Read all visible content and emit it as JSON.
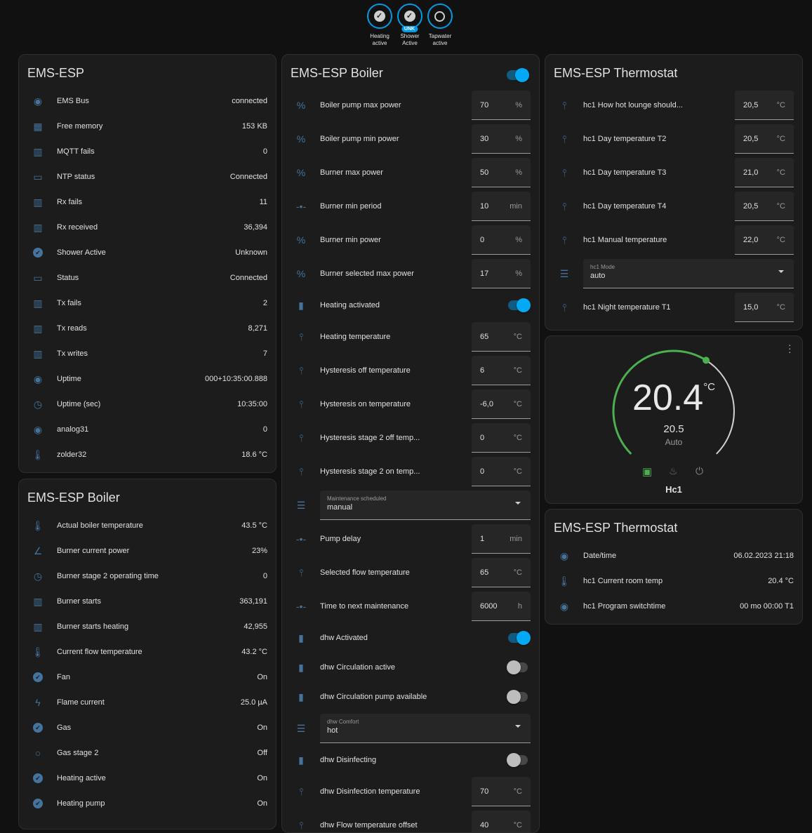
{
  "badges": [
    {
      "label": "Heating active",
      "state": "on"
    },
    {
      "label": "Shower Active",
      "state": "on",
      "tag": "UNK"
    },
    {
      "label": "Tapwater active",
      "state": "off"
    }
  ],
  "card_status": {
    "title": "EMS-ESP",
    "rows": [
      {
        "icon": "eye-icon",
        "label": "EMS Bus",
        "value": "connected"
      },
      {
        "icon": "chip-icon",
        "label": "Free memory",
        "value": "153 KB"
      },
      {
        "icon": "counter-icon",
        "label": "MQTT fails",
        "value": "0"
      },
      {
        "icon": "monitor-icon",
        "label": "NTP status",
        "value": "Connected"
      },
      {
        "icon": "counter-icon",
        "label": "Rx fails",
        "value": "11"
      },
      {
        "icon": "counter-icon",
        "label": "Rx received",
        "value": "36,394"
      },
      {
        "icon": "check-circle-icon",
        "label": "Shower Active",
        "value": "Unknown"
      },
      {
        "icon": "monitor-icon",
        "label": "Status",
        "value": "Connected"
      },
      {
        "icon": "counter-icon",
        "label": "Tx fails",
        "value": "2"
      },
      {
        "icon": "counter-icon",
        "label": "Tx reads",
        "value": "8,271"
      },
      {
        "icon": "counter-icon",
        "label": "Tx writes",
        "value": "7"
      },
      {
        "icon": "eye-icon",
        "label": "Uptime",
        "value": "000+10:35:00.888"
      },
      {
        "icon": "timer-icon",
        "label": "Uptime (sec)",
        "value": "10:35:00"
      },
      {
        "icon": "eye-icon",
        "label": "analog31",
        "value": "0"
      },
      {
        "icon": "thermometer-icon",
        "label": "zolder32",
        "value": "18.6 °C"
      }
    ]
  },
  "card_boiler_sensors": {
    "title": "EMS-ESP Boiler",
    "rows": [
      {
        "icon": "thermometer-icon",
        "label": "Actual boiler temperature",
        "value": "43.5 °C"
      },
      {
        "icon": "angle-icon",
        "label": "Burner current power",
        "value": "23%"
      },
      {
        "icon": "timer-icon",
        "label": "Burner stage 2 operating time",
        "value": "0"
      },
      {
        "icon": "counter-icon",
        "label": "Burner starts",
        "value": "363,191"
      },
      {
        "icon": "counter-icon",
        "label": "Burner starts heating",
        "value": "42,955"
      },
      {
        "icon": "thermometer-icon",
        "label": "Current flow temperature",
        "value": "43.2 °C"
      },
      {
        "icon": "check-circle-icon",
        "label": "Fan",
        "value": "On"
      },
      {
        "icon": "flash-icon",
        "label": "Flame current",
        "value": "25.0 µA"
      },
      {
        "icon": "check-circle-icon",
        "label": "Gas",
        "value": "On"
      },
      {
        "icon": "circle-outline-icon",
        "label": "Gas stage 2",
        "value": "Off"
      },
      {
        "icon": "check-circle-icon",
        "label": "Heating active",
        "value": "On"
      },
      {
        "icon": "check-circle-icon",
        "label": "Heating pump",
        "value": "On"
      }
    ]
  },
  "card_boiler_controls": {
    "title": "EMS-ESP Boiler",
    "master_toggle": true,
    "rows": [
      {
        "type": "number",
        "icon": "percent-icon",
        "label": "Boiler pump max power",
        "value": "70",
        "unit": "%"
      },
      {
        "type": "number",
        "icon": "percent-icon",
        "label": "Boiler pump min power",
        "value": "30",
        "unit": "%"
      },
      {
        "type": "number",
        "icon": "percent-icon",
        "label": "Burner max power",
        "value": "50",
        "unit": "%"
      },
      {
        "type": "number",
        "icon": "slider-icon",
        "label": "Burner min period",
        "value": "10",
        "unit": "min"
      },
      {
        "type": "number",
        "icon": "percent-icon",
        "label": "Burner min power",
        "value": "0",
        "unit": "%"
      },
      {
        "type": "number",
        "icon": "percent-icon",
        "label": "Burner selected max power",
        "value": "17",
        "unit": "%"
      },
      {
        "type": "toggle",
        "icon": "switch-icon",
        "label": "Heating activated",
        "on": true
      },
      {
        "type": "number",
        "icon": "water-thermometer-icon",
        "label": "Heating temperature",
        "value": "65",
        "unit": "°C"
      },
      {
        "type": "number",
        "icon": "water-thermometer-icon",
        "label": "Hysteresis off temperature",
        "value": "6",
        "unit": "°C"
      },
      {
        "type": "number",
        "icon": "water-thermometer-icon",
        "label": "Hysteresis on temperature",
        "value": "-6,0",
        "unit": "°C"
      },
      {
        "type": "number",
        "icon": "water-thermometer-icon",
        "label": "Hysteresis stage 2 off temp...",
        "value": "0",
        "unit": "°C"
      },
      {
        "type": "number",
        "icon": "water-thermometer-icon",
        "label": "Hysteresis stage 2 on temp...",
        "value": "0",
        "unit": "°C"
      },
      {
        "type": "select",
        "icon": "list-icon",
        "label": "Maintenance scheduled",
        "value": "manual"
      },
      {
        "type": "number",
        "icon": "slider-icon",
        "label": "Pump delay",
        "value": "1",
        "unit": "min"
      },
      {
        "type": "number",
        "icon": "water-thermometer-icon",
        "label": "Selected flow temperature",
        "value": "65",
        "unit": "°C"
      },
      {
        "type": "number",
        "icon": "slider-icon",
        "label": "Time to next maintenance",
        "value": "6000",
        "unit": "h"
      },
      {
        "type": "toggle",
        "icon": "switch-icon",
        "label": "dhw Activated",
        "on": true
      },
      {
        "type": "toggle",
        "icon": "switch-icon",
        "label": "dhw Circulation active",
        "on": false
      },
      {
        "type": "toggle",
        "icon": "switch-icon",
        "label": "dhw Circulation pump available",
        "on": false
      },
      {
        "type": "select",
        "icon": "list-icon",
        "label": "dhw Comfort",
        "value": "hot"
      },
      {
        "type": "toggle",
        "icon": "switch-icon",
        "label": "dhw Disinfecting",
        "on": false
      },
      {
        "type": "number",
        "icon": "water-thermometer-icon",
        "label": "dhw Disinfection temperature",
        "value": "70",
        "unit": "°C"
      },
      {
        "type": "number",
        "icon": "water-thermometer-icon",
        "label": "dhw Flow temperature offset",
        "value": "40",
        "unit": "°C"
      }
    ]
  },
  "card_thermo_controls": {
    "title": "EMS-ESP Thermostat",
    "rows": [
      {
        "type": "number",
        "icon": "water-thermometer-icon",
        "label": "hc1 How hot lounge should...",
        "value": "20,5",
        "unit": "°C"
      },
      {
        "type": "number",
        "icon": "water-thermometer-icon",
        "label": "hc1 Day temperature T2",
        "value": "20,5",
        "unit": "°C"
      },
      {
        "type": "number",
        "icon": "water-thermometer-icon",
        "label": "hc1 Day temperature T3",
        "value": "21,0",
        "unit": "°C"
      },
      {
        "type": "number",
        "icon": "water-thermometer-icon",
        "label": "hc1 Day temperature T4",
        "value": "20,5",
        "unit": "°C"
      },
      {
        "type": "number",
        "icon": "water-thermometer-icon",
        "label": "hc1 Manual temperature",
        "value": "22,0",
        "unit": "°C"
      },
      {
        "type": "select",
        "icon": "list-icon",
        "label": "hc1 Mode",
        "value": "auto"
      },
      {
        "type": "number",
        "icon": "water-thermometer-icon",
        "label": "hc1 Night temperature T1",
        "value": "15,0",
        "unit": "°C"
      }
    ]
  },
  "thermostat": {
    "current": "20.4",
    "unit": "°C",
    "target": "20.5",
    "mode": "Auto",
    "name": "Hc1",
    "target_fraction": 0.62,
    "accent": "#4caf50",
    "modes": [
      "auto",
      "heat",
      "off"
    ]
  },
  "card_thermo_sensors": {
    "title": "EMS-ESP Thermostat",
    "rows": [
      {
        "icon": "eye-icon",
        "label": "Date/time",
        "value": "06.02.2023 21:18"
      },
      {
        "icon": "thermometer-icon",
        "label": "hc1 Current room temp",
        "value": "20.4 °C"
      },
      {
        "icon": "eye-icon",
        "label": "hc1 Program switchtime",
        "value": "00 mo 00:00 T1"
      }
    ]
  }
}
